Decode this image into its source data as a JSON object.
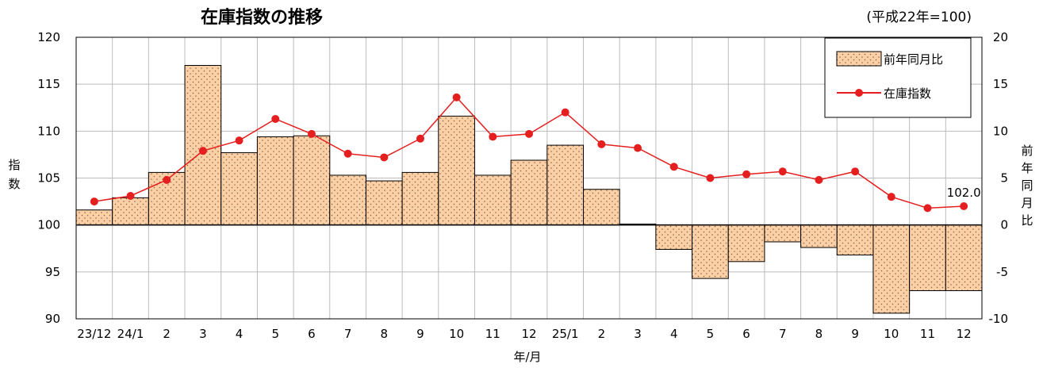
{
  "chart_data": {
    "type": "bar+line",
    "title": "在庫指数の推移",
    "subtitle": "(平成22年=100)",
    "xlabel": "年/月",
    "ylabel_left": [
      "指",
      "数"
    ],
    "ylabel_right": [
      "前",
      "年",
      "同",
      "月",
      "比"
    ],
    "y_left": {
      "min": 90,
      "max": 120,
      "step": 5,
      "ticks": [
        "90",
        "95",
        "100",
        "105",
        "110",
        "115",
        "120"
      ]
    },
    "y_right": {
      "min": -10,
      "max": 20,
      "step": 5,
      "ticks": [
        "-10",
        "-5",
        "0",
        "5",
        "10",
        "15",
        "20"
      ]
    },
    "categories": [
      "23/12",
      "24/1",
      "2",
      "3",
      "4",
      "5",
      "6",
      "7",
      "8",
      "9",
      "10",
      "11",
      "12",
      "25/1",
      "2",
      "3",
      "4",
      "5",
      "6",
      "7",
      "8",
      "9",
      "10",
      "11",
      "12"
    ],
    "series": [
      {
        "name": "前年同月比",
        "type": "bar",
        "axis": "right",
        "color": "#fbd0a6",
        "dot_color": "#8a5a3a",
        "values": [
          1.6,
          2.9,
          5.6,
          17.0,
          7.7,
          9.4,
          9.5,
          5.3,
          4.7,
          5.6,
          11.6,
          5.3,
          6.9,
          8.5,
          3.8,
          0.1,
          -2.6,
          -5.7,
          -3.9,
          -1.8,
          -2.4,
          -3.2,
          -9.4,
          -7.0,
          -7.0
        ]
      },
      {
        "name": "在庫指数",
        "type": "line",
        "axis": "left",
        "color": "#e51f1f",
        "values": [
          102.5,
          103.1,
          104.8,
          107.9,
          109.0,
          111.3,
          109.7,
          107.6,
          107.2,
          109.2,
          113.6,
          109.4,
          109.7,
          112.0,
          108.6,
          108.2,
          106.2,
          105.0,
          105.4,
          105.7,
          104.8,
          105.7,
          103.0,
          101.8,
          102.0
        ]
      }
    ],
    "annotations": [
      {
        "category_index": 24,
        "text": "102.0"
      }
    ],
    "grid": {
      "vertical": true,
      "horizontal": true
    },
    "legend_position": "top-right"
  }
}
